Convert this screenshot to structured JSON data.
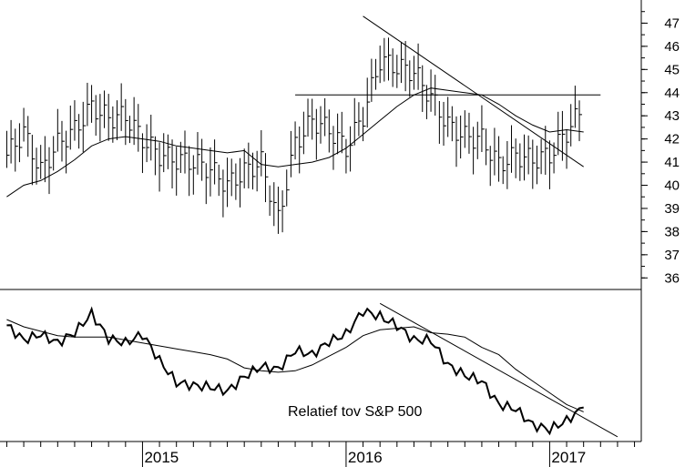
{
  "chart_data": [
    {
      "type": "line",
      "subtype": "ohlc-bar",
      "title": "",
      "xlabel": "",
      "ylabel": "",
      "ylim": [
        35.5,
        48
      ],
      "grid": false,
      "legend": "none",
      "y_ticks": [
        36,
        37,
        38,
        39,
        40,
        41,
        42,
        43,
        44,
        45,
        46,
        47
      ],
      "x": [
        "2014-05",
        "2014-06",
        "2014-07",
        "2014-08",
        "2014-09",
        "2014-10",
        "2014-11",
        "2014-12",
        "2015-01",
        "2015-02",
        "2015-03",
        "2015-04",
        "2015-05",
        "2015-06",
        "2015-07",
        "2015-08",
        "2015-09",
        "2015-10",
        "2015-11",
        "2015-12",
        "2016-01",
        "2016-02",
        "2016-03",
        "2016-04",
        "2016-05",
        "2016-06",
        "2016-07",
        "2016-08",
        "2016-09",
        "2016-10",
        "2016-11",
        "2016-12",
        "2017-01",
        "2017-02",
        "2017-03"
      ],
      "series": [
        {
          "style": "bars",
          "values": [
            41.3,
            42.3,
            40.6,
            41.8,
            42.4,
            43.4,
            42.9,
            43.0,
            42.0,
            41.3,
            41.1,
            41.0,
            40.7,
            40.0,
            40.6,
            41.0,
            38.5,
            41.8,
            42.8,
            42.4,
            41.6,
            43.0,
            45.4,
            45.1,
            44.9,
            43.8,
            42.6,
            42.1,
            42.0,
            40.9,
            41.3,
            41.1,
            41.3,
            42.3,
            43.4
          ]
        },
        {
          "style": "moving-average",
          "values": [
            39.5,
            40.0,
            40.2,
            40.6,
            41.1,
            41.7,
            42.0,
            42.1,
            42.0,
            41.9,
            41.7,
            41.6,
            41.5,
            41.4,
            41.5,
            40.9,
            40.8,
            40.9,
            41.0,
            41.2,
            41.6,
            42.2,
            42.8,
            43.4,
            43.9,
            44.2,
            44.1,
            44.0,
            43.9,
            43.5,
            43.0,
            42.6,
            42.3,
            42.4,
            42.3
          ]
        }
      ],
      "reference_lines": [
        {
          "kind": "horizontal",
          "y": 43.9,
          "from": "2015-10",
          "to": "2017-04"
        },
        {
          "kind": "trend",
          "from": [
            "2016-02",
            47.3
          ],
          "to": [
            "2017-03",
            40.8
          ]
        }
      ]
    },
    {
      "type": "line",
      "title": "",
      "annotation": "Relatief tov S&P 500",
      "ylim": [
        0,
        1
      ],
      "grid": false,
      "legend": "none",
      "x_ticks": [
        "2015",
        "2016",
        "2017"
      ],
      "x": [
        "2014-05",
        "2014-06",
        "2014-07",
        "2014-08",
        "2014-09",
        "2014-10",
        "2014-11",
        "2014-12",
        "2015-01",
        "2015-02",
        "2015-03",
        "2015-04",
        "2015-05",
        "2015-06",
        "2015-07",
        "2015-08",
        "2015-09",
        "2015-10",
        "2015-11",
        "2015-12",
        "2016-01",
        "2016-02",
        "2016-03",
        "2016-04",
        "2016-05",
        "2016-06",
        "2016-07",
        "2016-08",
        "2016-09",
        "2016-10",
        "2016-11",
        "2016-12",
        "2017-01",
        "2017-02",
        "2017-03"
      ],
      "series": [
        {
          "style": "ratio",
          "values": [
            0.78,
            0.68,
            0.72,
            0.66,
            0.73,
            0.86,
            0.69,
            0.66,
            0.72,
            0.54,
            0.39,
            0.37,
            0.36,
            0.33,
            0.43,
            0.5,
            0.48,
            0.61,
            0.58,
            0.67,
            0.72,
            0.88,
            0.84,
            0.78,
            0.68,
            0.68,
            0.51,
            0.44,
            0.4,
            0.24,
            0.21,
            0.1,
            0.07,
            0.13,
            0.22
          ]
        },
        {
          "style": "moving-average",
          "values": [
            0.82,
            0.77,
            0.74,
            0.71,
            0.7,
            0.7,
            0.7,
            0.68,
            0.66,
            0.64,
            0.62,
            0.6,
            0.58,
            0.55,
            0.49,
            0.47,
            0.46,
            0.47,
            0.51,
            0.57,
            0.63,
            0.71,
            0.75,
            0.76,
            0.77,
            0.73,
            0.72,
            0.7,
            0.63,
            0.58,
            0.48,
            0.4,
            0.32,
            0.24,
            0.19
          ]
        }
      ],
      "reference_lines": [
        {
          "kind": "trend",
          "from": [
            "2016-03",
            0.93
          ],
          "to": [
            "2017-05",
            0.02
          ]
        }
      ]
    }
  ]
}
